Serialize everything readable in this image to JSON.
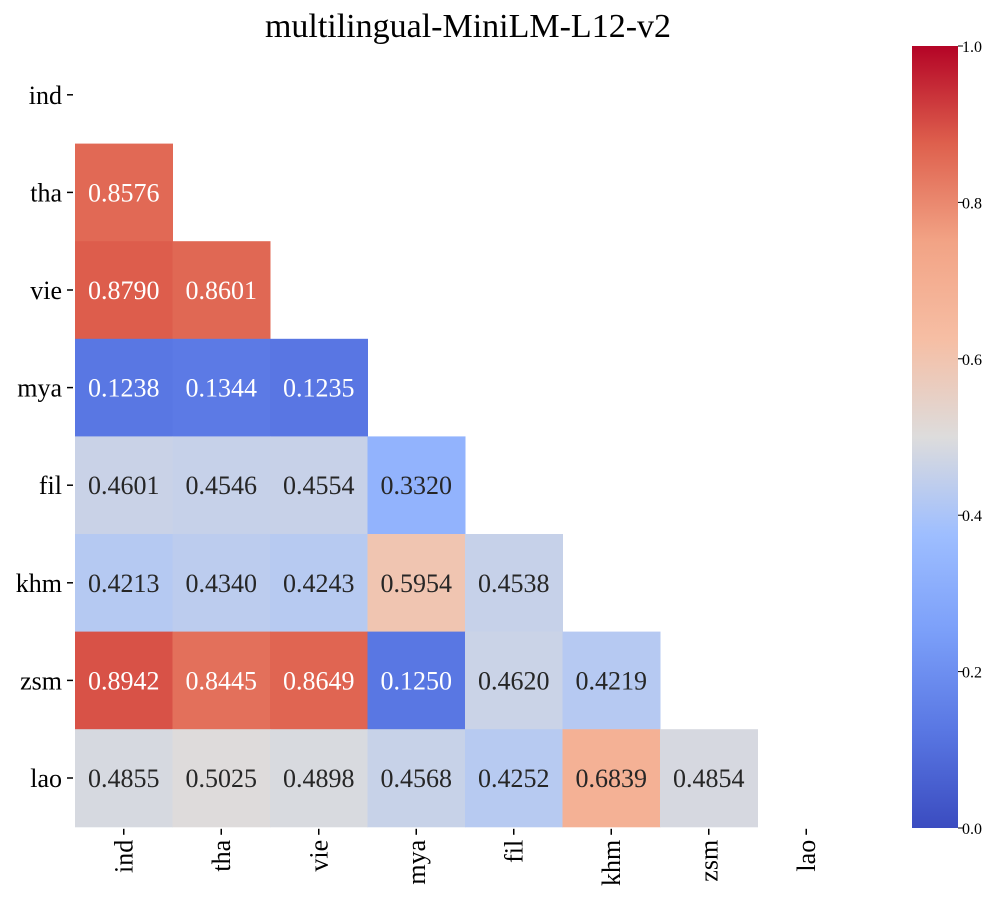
{
  "chart_data": {
    "type": "heatmap",
    "title": "multilingual-MiniLM-L12-v2",
    "xlabel": "",
    "ylabel": "",
    "x_categories": [
      "ind",
      "tha",
      "vie",
      "mya",
      "fil",
      "khm",
      "zsm",
      "lao"
    ],
    "y_categories": [
      "ind",
      "tha",
      "vie",
      "mya",
      "fil",
      "khm",
      "zsm",
      "lao"
    ],
    "mask": "upper-triangle-including-diagonal",
    "rows": [
      [],
      [
        0.8576
      ],
      [
        0.879,
        0.8601
      ],
      [
        0.1238,
        0.1344,
        0.1235
      ],
      [
        0.4601,
        0.4546,
        0.4554,
        0.332
      ],
      [
        0.4213,
        0.434,
        0.4243,
        0.5954,
        0.4538
      ],
      [
        0.8942,
        0.8445,
        0.8649,
        0.125,
        0.462,
        0.4219
      ],
      [
        0.4855,
        0.5025,
        0.4898,
        0.4568,
        0.4252,
        0.6839,
        0.4854
      ]
    ],
    "value_labels": [
      [],
      [
        "0.8576"
      ],
      [
        "0.8790",
        "0.8601"
      ],
      [
        "0.1238",
        "0.1344",
        "0.1235"
      ],
      [
        "0.4601",
        "0.4546",
        "0.4554",
        "0.3320"
      ],
      [
        "0.4213",
        "0.4340",
        "0.4243",
        "0.5954",
        "0.4538"
      ],
      [
        "0.8942",
        "0.8445",
        "0.8649",
        "0.1250",
        "0.4620",
        "0.4219"
      ],
      [
        "0.4855",
        "0.5025",
        "0.4898",
        "0.4568",
        "0.4252",
        "0.6839",
        "0.4854"
      ]
    ],
    "colormap": "coolwarm",
    "vmin": 0.0,
    "vmax": 1.0,
    "colorbar": {
      "position": "right",
      "ticks": [
        0.0,
        0.2,
        0.4,
        0.6,
        0.8,
        1.0
      ],
      "tick_labels": [
        "0.0",
        "0.2",
        "0.4",
        "0.6",
        "0.8",
        "1.0"
      ]
    },
    "grid": false,
    "legend": "none"
  }
}
